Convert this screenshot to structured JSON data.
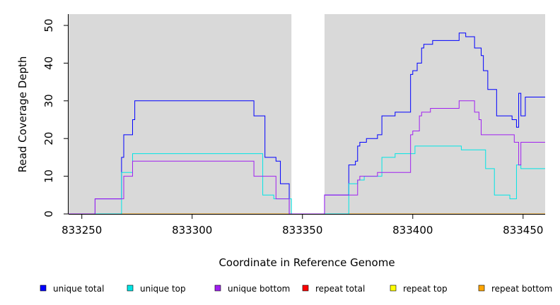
{
  "chart_data": {
    "type": "line",
    "xlabel": "Coordinate in Reference Genome",
    "ylabel": "Read Coverage Depth",
    "xlim": [
      833244,
      833460
    ],
    "ylim": [
      0,
      53
    ],
    "x_ticks": [
      833250,
      833300,
      833350,
      833400,
      833450
    ],
    "x_tick_labels": [
      "833250",
      "833300",
      "833350",
      "833400",
      "833450"
    ],
    "y_ticks": [
      0,
      10,
      20,
      30,
      40,
      50
    ],
    "y_tick_labels": [
      "0",
      "10",
      "20",
      "30",
      "40",
      "50"
    ],
    "background_color": "#d9d9d9",
    "gap_regions": [
      [
        833345,
        833360
      ]
    ],
    "legend_position": "bottom",
    "series": [
      {
        "name": "unique total",
        "color": "#0000ff",
        "points": [
          [
            833244,
            0
          ],
          [
            833256,
            0
          ],
          [
            833256,
            4
          ],
          [
            833268,
            4
          ],
          [
            833268,
            15
          ],
          [
            833269,
            15
          ],
          [
            833269,
            21
          ],
          [
            833273,
            21
          ],
          [
            833273,
            25
          ],
          [
            833274,
            25
          ],
          [
            833274,
            30
          ],
          [
            833328,
            30
          ],
          [
            833328,
            26
          ],
          [
            833333,
            26
          ],
          [
            833333,
            15
          ],
          [
            833338,
            15
          ],
          [
            833338,
            14
          ],
          [
            833340,
            14
          ],
          [
            833340,
            8
          ],
          [
            833344,
            8
          ],
          [
            833344,
            0
          ],
          [
            833360,
            0
          ],
          [
            833360,
            5
          ],
          [
            833371,
            5
          ],
          [
            833371,
            13
          ],
          [
            833374,
            13
          ],
          [
            833374,
            14
          ],
          [
            833375,
            14
          ],
          [
            833375,
            18
          ],
          [
            833376,
            18
          ],
          [
            833376,
            19
          ],
          [
            833379,
            19
          ],
          [
            833379,
            20
          ],
          [
            833384,
            20
          ],
          [
            833384,
            21
          ],
          [
            833386,
            21
          ],
          [
            833386,
            26
          ],
          [
            833392,
            26
          ],
          [
            833392,
            27
          ],
          [
            833399,
            27
          ],
          [
            833399,
            37
          ],
          [
            833400,
            37
          ],
          [
            833400,
            38
          ],
          [
            833402,
            38
          ],
          [
            833402,
            40
          ],
          [
            833404,
            40
          ],
          [
            833404,
            44
          ],
          [
            833405,
            44
          ],
          [
            833405,
            45
          ],
          [
            833409,
            45
          ],
          [
            833409,
            46
          ],
          [
            833421,
            46
          ],
          [
            833421,
            48
          ],
          [
            833424,
            48
          ],
          [
            833424,
            47
          ],
          [
            833428,
            47
          ],
          [
            833428,
            44
          ],
          [
            833431,
            44
          ],
          [
            833431,
            42
          ],
          [
            833432,
            42
          ],
          [
            833432,
            38
          ],
          [
            833434,
            38
          ],
          [
            833434,
            33
          ],
          [
            833438,
            33
          ],
          [
            833438,
            26
          ],
          [
            833445,
            26
          ],
          [
            833445,
            25
          ],
          [
            833447,
            25
          ],
          [
            833447,
            23
          ],
          [
            833448,
            23
          ],
          [
            833448,
            32
          ],
          [
            833449,
            32
          ],
          [
            833449,
            26
          ],
          [
            833451,
            26
          ],
          [
            833451,
            31
          ],
          [
            833460,
            31
          ]
        ]
      },
      {
        "name": "unique top",
        "color": "#00e5e5",
        "points": [
          [
            833244,
            0
          ],
          [
            833268,
            0
          ],
          [
            833268,
            11
          ],
          [
            833273,
            11
          ],
          [
            833273,
            16
          ],
          [
            833332,
            16
          ],
          [
            833332,
            5
          ],
          [
            833337,
            5
          ],
          [
            833337,
            4
          ],
          [
            833345,
            4
          ],
          [
            833345,
            0
          ],
          [
            833371,
            0
          ],
          [
            833371,
            8
          ],
          [
            833375,
            8
          ],
          [
            833375,
            9
          ],
          [
            833378,
            9
          ],
          [
            833378,
            10
          ],
          [
            833386,
            10
          ],
          [
            833386,
            15
          ],
          [
            833392,
            15
          ],
          [
            833392,
            16
          ],
          [
            833401,
            16
          ],
          [
            833401,
            18
          ],
          [
            833422,
            18
          ],
          [
            833422,
            17
          ],
          [
            833433,
            17
          ],
          [
            833433,
            12
          ],
          [
            833437,
            12
          ],
          [
            833437,
            5
          ],
          [
            833444,
            5
          ],
          [
            833444,
            4
          ],
          [
            833447,
            4
          ],
          [
            833447,
            13
          ],
          [
            833449,
            13
          ],
          [
            833449,
            12
          ],
          [
            833460,
            12
          ]
        ]
      },
      {
        "name": "unique bottom",
        "color": "#a020f0",
        "points": [
          [
            833244,
            0
          ],
          [
            833256,
            0
          ],
          [
            833256,
            4
          ],
          [
            833269,
            4
          ],
          [
            833269,
            10
          ],
          [
            833273,
            10
          ],
          [
            833273,
            14
          ],
          [
            833328,
            14
          ],
          [
            833328,
            10
          ],
          [
            833338,
            10
          ],
          [
            833338,
            4
          ],
          [
            833344,
            4
          ],
          [
            833344,
            0
          ],
          [
            833360,
            0
          ],
          [
            833360,
            5
          ],
          [
            833375,
            5
          ],
          [
            833375,
            9
          ],
          [
            833376,
            9
          ],
          [
            833376,
            10
          ],
          [
            833384,
            10
          ],
          [
            833384,
            11
          ],
          [
            833399,
            11
          ],
          [
            833399,
            21
          ],
          [
            833400,
            21
          ],
          [
            833400,
            22
          ],
          [
            833403,
            22
          ],
          [
            833403,
            26
          ],
          [
            833404,
            26
          ],
          [
            833404,
            27
          ],
          [
            833408,
            27
          ],
          [
            833408,
            28
          ],
          [
            833421,
            28
          ],
          [
            833421,
            30
          ],
          [
            833428,
            30
          ],
          [
            833428,
            27
          ],
          [
            833430,
            27
          ],
          [
            833430,
            25
          ],
          [
            833431,
            25
          ],
          [
            833431,
            21
          ],
          [
            833446,
            21
          ],
          [
            833446,
            19
          ],
          [
            833448,
            19
          ],
          [
            833448,
            13
          ],
          [
            833449,
            13
          ],
          [
            833449,
            19
          ],
          [
            833460,
            19
          ]
        ]
      },
      {
        "name": "repeat total",
        "color": "#ff0000",
        "points": [
          [
            833244,
            0
          ],
          [
            833460,
            0
          ]
        ]
      },
      {
        "name": "repeat top",
        "color": "#ffff00",
        "points": [
          [
            833244,
            0
          ],
          [
            833460,
            0
          ]
        ]
      },
      {
        "name": "repeat bottom",
        "color": "#ffa500",
        "points": [
          [
            833244,
            0
          ],
          [
            833460,
            0
          ]
        ]
      }
    ]
  }
}
